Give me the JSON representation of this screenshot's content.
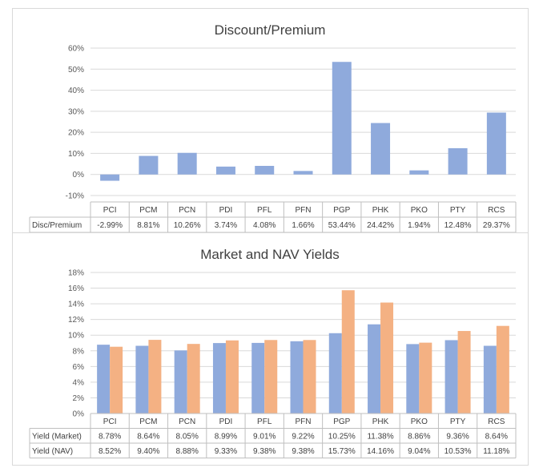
{
  "chart_data": [
    {
      "type": "bar",
      "title": "Discount/Premium",
      "categories": [
        "PCI",
        "PCM",
        "PCN",
        "PDI",
        "PFL",
        "PFN",
        "PGP",
        "PHK",
        "PKO",
        "PTY",
        "RCS"
      ],
      "series": [
        {
          "name": "Disc/Premium",
          "color": "#8faadc",
          "values": [
            -2.99,
            8.81,
            10.26,
            3.74,
            4.08,
            1.66,
            53.44,
            24.42,
            1.94,
            12.48,
            29.37
          ],
          "labels": [
            "-2.99%",
            "8.81%",
            "10.26%",
            "3.74%",
            "4.08%",
            "1.66%",
            "53.44%",
            "24.42%",
            "1.94%",
            "12.48%",
            "29.37%"
          ]
        }
      ],
      "ylim": [
        -10,
        60
      ],
      "yticks": [
        "-10%",
        "0%",
        "10%",
        "20%",
        "30%",
        "40%",
        "50%",
        "60%"
      ],
      "grid": true,
      "data_table": true
    },
    {
      "type": "bar",
      "title": "Market and NAV Yields",
      "categories": [
        "PCI",
        "PCM",
        "PCN",
        "PDI",
        "PFL",
        "PFN",
        "PGP",
        "PHK",
        "PKO",
        "PTY",
        "RCS"
      ],
      "series": [
        {
          "name": "Yield (Market)",
          "color": "#8faadc",
          "values": [
            8.78,
            8.64,
            8.05,
            8.99,
            9.01,
            9.22,
            10.25,
            11.38,
            8.86,
            9.36,
            8.64
          ],
          "labels": [
            "8.78%",
            "8.64%",
            "8.05%",
            "8.99%",
            "9.01%",
            "9.22%",
            "10.25%",
            "11.38%",
            "8.86%",
            "9.36%",
            "8.64%"
          ]
        },
        {
          "name": "Yield (NAV)",
          "color": "#f4b183",
          "values": [
            8.52,
            9.4,
            8.88,
            9.33,
            9.38,
            9.38,
            15.73,
            14.16,
            9.04,
            10.53,
            11.18
          ],
          "labels": [
            "8.52%",
            "9.40%",
            "8.88%",
            "9.33%",
            "9.38%",
            "9.38%",
            "15.73%",
            "14.16%",
            "9.04%",
            "10.53%",
            "11.18%"
          ]
        }
      ],
      "ylim": [
        0,
        18
      ],
      "yticks": [
        "0%",
        "2%",
        "4%",
        "6%",
        "8%",
        "10%",
        "12%",
        "14%",
        "16%",
        "18%"
      ],
      "grid": true,
      "data_table": true
    }
  ]
}
